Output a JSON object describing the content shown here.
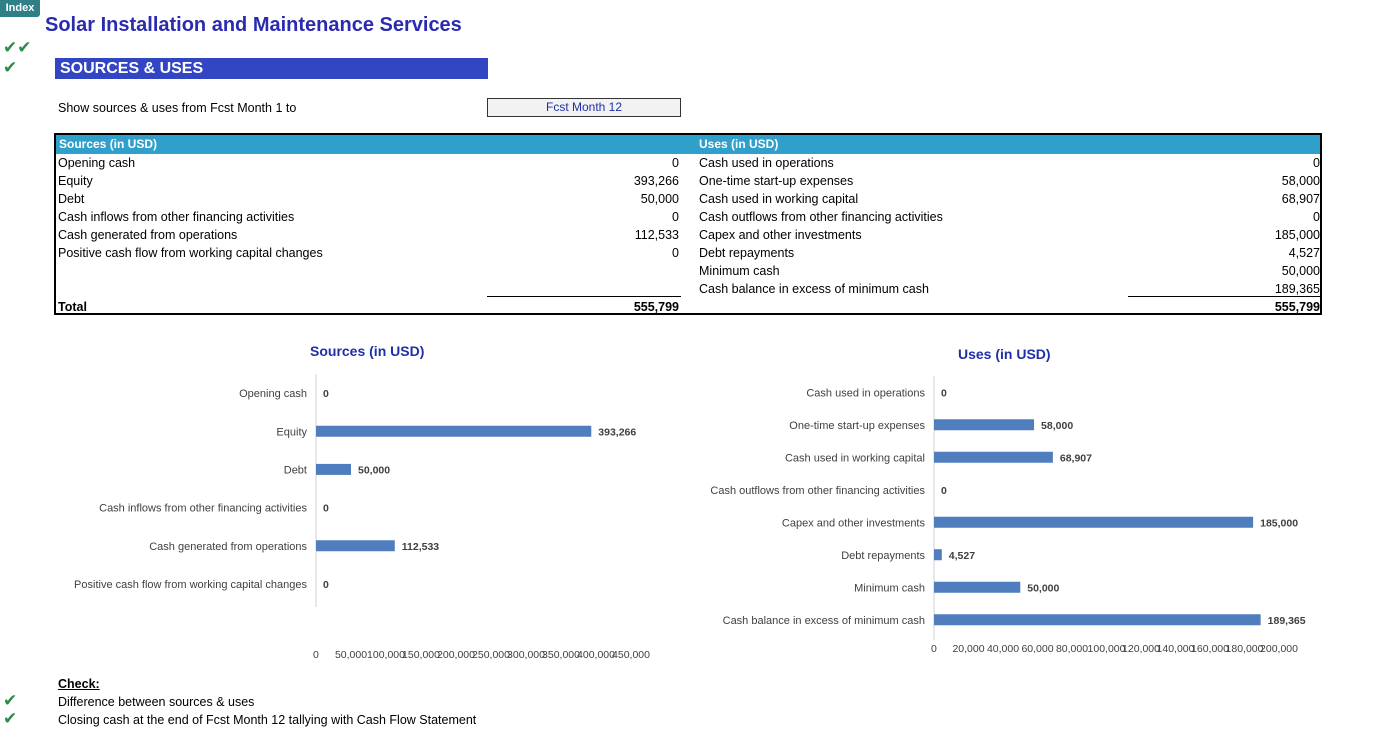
{
  "index_tab": "Index",
  "title": "Solar Installation and Maintenance Services",
  "check_marks": {
    "double": "✔✔",
    "single": "✔"
  },
  "section_title": "SOURCES & USES",
  "show_label": "Show sources & uses from Fcst Month 1 to",
  "month_select": "Fcst Month 12",
  "table": {
    "sources_header": "Sources (in USD)",
    "uses_header": "Uses (in USD)",
    "sources": [
      {
        "label": "Opening cash",
        "value": "0"
      },
      {
        "label": "Equity",
        "value": "393,266"
      },
      {
        "label": "Debt",
        "value": "50,000"
      },
      {
        "label": "Cash inflows from other financing activities",
        "value": "0"
      },
      {
        "label": "Cash generated from operations",
        "value": "112,533"
      },
      {
        "label": "Positive cash flow from working capital changes",
        "value": "0"
      }
    ],
    "uses": [
      {
        "label": "Cash used in operations",
        "value": "0"
      },
      {
        "label": "One-time start-up expenses",
        "value": "58,000"
      },
      {
        "label": "Cash used in working capital",
        "value": "68,907"
      },
      {
        "label": "Cash outflows from other  financing activities",
        "value": "0"
      },
      {
        "label": "Capex and other investments",
        "value": "185,000"
      },
      {
        "label": "Debt repayments",
        "value": "4,527"
      },
      {
        "label": "Minimum cash",
        "value": "50,000"
      },
      {
        "label": "Cash balance in excess of minimum cash",
        "value": "189,365"
      }
    ],
    "total_label": "Total",
    "sources_total": "555,799",
    "uses_total": "555,799"
  },
  "chart_data": [
    {
      "type": "bar",
      "orientation": "horizontal",
      "title": "Sources (in USD)",
      "categories": [
        "Opening cash",
        "Equity",
        "Debt",
        "Cash inflows from other financing activities",
        "Cash generated from operations",
        "Positive cash flow from working capital changes"
      ],
      "values": [
        0,
        393266,
        50000,
        0,
        112533,
        0
      ],
      "data_labels": [
        "0",
        "393,266",
        "50,000",
        "0",
        "112,533",
        "0"
      ],
      "xlim": [
        0,
        450000
      ],
      "ticks": [
        "0",
        "50,000",
        "100,000",
        "150,000",
        "200,000",
        "250,000",
        "300,000",
        "350,000",
        "400,000",
        "450,000"
      ],
      "bar_color": "#4f7dbd",
      "grid": false
    },
    {
      "type": "bar",
      "orientation": "horizontal",
      "title": "Uses (in USD)",
      "categories": [
        "Cash used in operations",
        "One-time start-up expenses",
        "Cash used in working capital",
        "Cash outflows from other  financing activities",
        "Capex and other investments",
        "Debt repayments",
        "Minimum cash",
        "Cash balance in excess of minimum cash"
      ],
      "values": [
        0,
        58000,
        68907,
        0,
        185000,
        4527,
        50000,
        189365
      ],
      "data_labels": [
        "0",
        "58,000",
        "68,907",
        "0",
        "185,000",
        "4,527",
        "50,000",
        "189,365"
      ],
      "xlim": [
        0,
        200000
      ],
      "ticks": [
        "0",
        "20,000",
        "40,000",
        "60,000",
        "80,000",
        "100,000",
        "120,000",
        "140,000",
        "160,000",
        "180,000",
        "200,000"
      ],
      "bar_color": "#4f7dbd",
      "grid": false
    }
  ],
  "check": {
    "heading": "Check:",
    "items": [
      "Difference between sources & uses",
      "Closing cash at the end of Fcst Month 12 tallying with Cash Flow Statement"
    ]
  },
  "colors": {
    "accent": "#3246c4",
    "table_header": "#2fa0cc",
    "title": "#2b2bb0",
    "check": "#2e8b4a",
    "bar": "#4f7dbd"
  }
}
